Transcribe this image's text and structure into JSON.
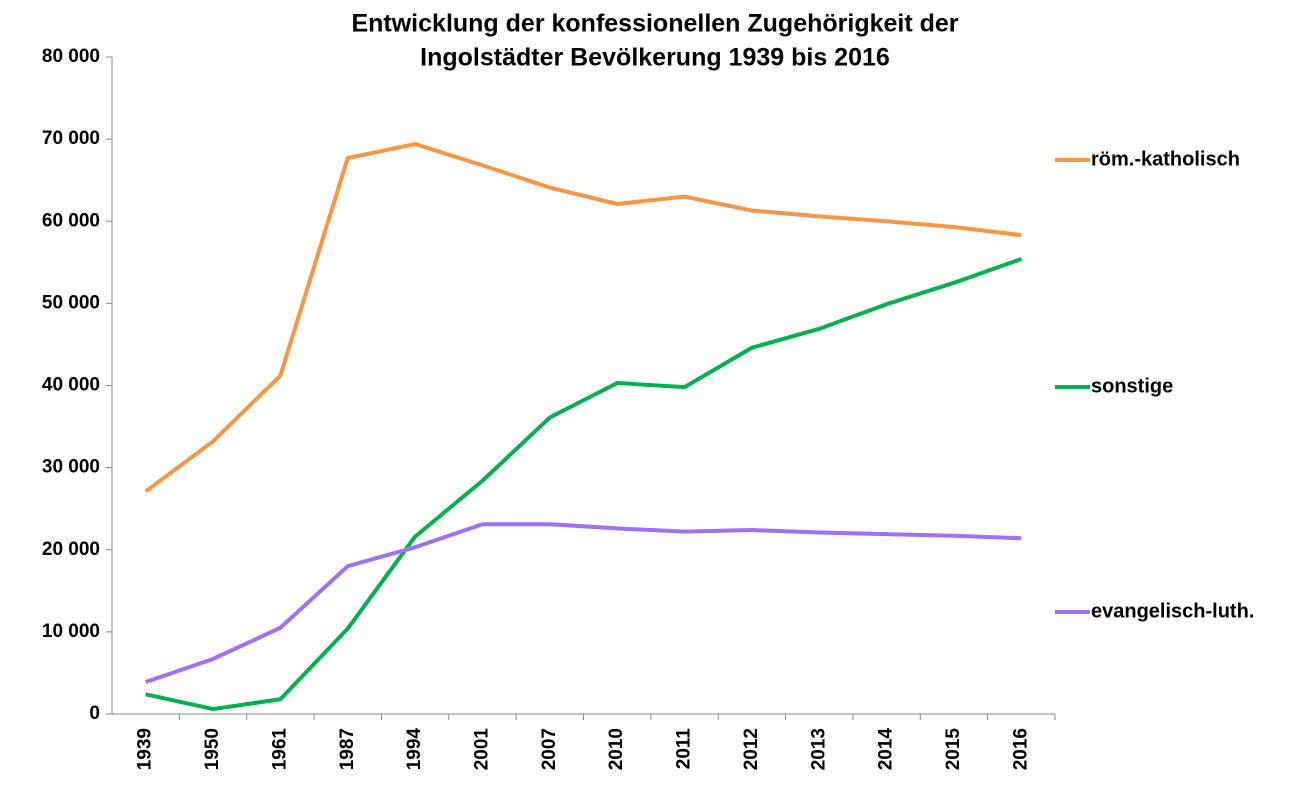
{
  "chart_data": {
    "type": "line",
    "title": [
      "Entwicklung der konfessionellen  Zugehörigkeit  der",
      "Ingolstädter Bevölkerung   1939 bis 2016"
    ],
    "categories": [
      "1939",
      "1950",
      "1961",
      "1987",
      "1994",
      "2001",
      "2007",
      "2010",
      "2011",
      "2012",
      "2013",
      "2014",
      "2015",
      "2016"
    ],
    "series": [
      {
        "name": "röm.-katholisch",
        "color": "#f79646",
        "values": [
          27100,
          33200,
          41200,
          67700,
          69400,
          66800,
          64100,
          62100,
          63000,
          61300,
          60600,
          60000,
          59300,
          58300
        ]
      },
      {
        "name": "sonstige",
        "color": "#00b050",
        "values": [
          2400,
          600,
          1800,
          10400,
          21600,
          28400,
          36100,
          40300,
          39800,
          44600,
          46900,
          49900,
          52500,
          55400
        ]
      },
      {
        "name": "evangelisch-luth.",
        "color": "#a070f8",
        "values": [
          3900,
          6700,
          10500,
          18000,
          20300,
          23100,
          23100,
          22600,
          22200,
          22400,
          22100,
          21900,
          21700,
          21400
        ]
      }
    ],
    "ylim": [
      0,
      80000
    ],
    "yticks": [
      0,
      {
        "value": 10000,
        "label": "10 000"
      },
      {
        "value": 20000,
        "label": "20 000"
      },
      {
        "value": 30000,
        "label": "30 000"
      },
      {
        "value": 40000,
        "label": "40 000"
      },
      {
        "value": 50000,
        "label": "50 000"
      },
      {
        "value": 60000,
        "label": "60 000"
      },
      {
        "value": 70000,
        "label": "70 000"
      },
      {
        "value": 80000,
        "label": "80 000"
      }
    ],
    "grid": false
  }
}
